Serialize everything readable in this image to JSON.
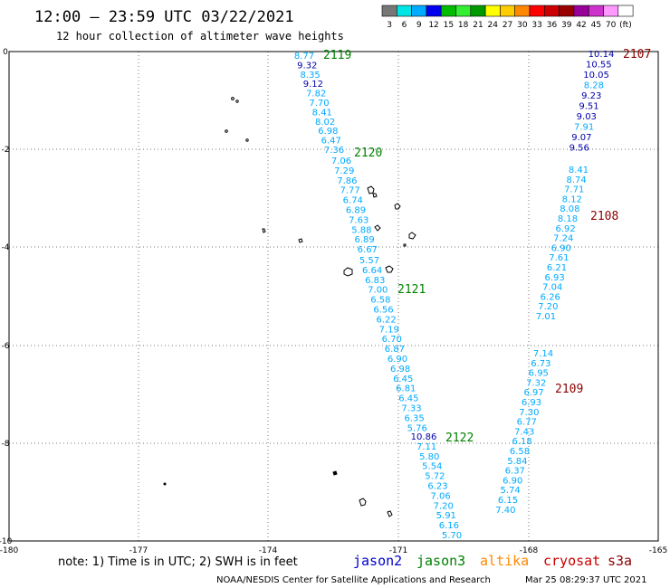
{
  "header": {
    "title": "12:00 – 23:59 UTC 03/22/2021",
    "subtitle": "12 hour collection of altimeter wave heights"
  },
  "colorbar": {
    "colors": [
      "#777777",
      "#00e6e6",
      "#00aaff",
      "#0000ee",
      "#00bb00",
      "#33ee33",
      "#009900",
      "#ffff00",
      "#ffcc00",
      "#ff8800",
      "#ff0000",
      "#cc0000",
      "#990000",
      "#990099",
      "#cc33cc",
      "#ff99ff",
      "#ffffff"
    ],
    "labels": [
      "3",
      "6",
      "9",
      "12",
      "15",
      "18",
      "21",
      "24",
      "27",
      "30",
      "33",
      "36",
      "39",
      "42",
      "45",
      "70",
      "(ft)"
    ]
  },
  "axes": {
    "x_ticks": [
      "-180",
      "-177",
      "-174",
      "-171",
      "-168",
      "-165"
    ],
    "y_ticks": [
      "0",
      "-2",
      "-4",
      "-6",
      "-8",
      "-10"
    ]
  },
  "islands": "small island outlines",
  "passes": [
    {
      "label": "2119",
      "color": "#008000",
      "values": [
        "8.77",
        "9.32",
        "8.35",
        "9.12",
        "7.82",
        "7.70",
        "8.41",
        "8.02",
        "6.98",
        "6.47",
        "7.36"
      ],
      "colors": [
        "#00aaff",
        "#0000aa",
        "#00aaff",
        "#0000aa",
        "#00aaff",
        "#00aaff",
        "#00aaff",
        "#00aaff",
        "#00aaff",
        "#00aaff",
        "#00aaff"
      ]
    },
    {
      "label": "2120",
      "color": "#008000",
      "values": [
        "7.06",
        "7.29",
        "7.86",
        "7.77",
        "6.74",
        "6.89",
        "7.63",
        "5.88",
        "6.89",
        "6.67"
      ],
      "colors": [
        "#00aaff",
        "#00aaff",
        "#00aaff",
        "#00aaff",
        "#00aaff",
        "#00aaff",
        "#00aaff",
        "#00aaff",
        "#00aaff",
        "#00aaff"
      ]
    },
    {
      "label": "2121",
      "color": "#008000",
      "values": [
        "5.57",
        "6.64",
        "6.83",
        "7.00",
        "6.58",
        "6.56",
        "6.22",
        "7.19",
        "6.70",
        "6.87",
        "6.90",
        "6.98",
        "6.45",
        "6.81",
        "6.45",
        "7.33",
        "6.35",
        "5.76"
      ],
      "colors": [
        "#00aaff",
        "#00aaff",
        "#00aaff",
        "#00aaff",
        "#00aaff",
        "#00aaff",
        "#00aaff",
        "#00aaff",
        "#00aaff",
        "#00aaff",
        "#00aaff",
        "#00aaff",
        "#00aaff",
        "#00aaff",
        "#00aaff",
        "#00aaff",
        "#00aaff",
        "#00aaff"
      ]
    },
    {
      "label": "2122",
      "color": "#008000",
      "values": [
        "10.86",
        "7.11",
        "5.80",
        "5.54",
        "5.72",
        "6.23",
        "7.06",
        "7.20",
        "5.91",
        "6.16",
        "5.70"
      ],
      "colors": [
        "#0000aa",
        "#00aaff",
        "#00aaff",
        "#00aaff",
        "#00aaff",
        "#00aaff",
        "#00aaff",
        "#00aaff",
        "#00aaff",
        "#00aaff",
        "#00aaff"
      ]
    },
    {
      "label": "2107",
      "color": "#8b0000",
      "values": [
        "10.14",
        "10.55",
        "10.05",
        "8.28",
        "9.23",
        "9.51",
        "9.03",
        "7.91",
        "9.07",
        "9.56"
      ],
      "colors": [
        "#0000aa",
        "#0000aa",
        "#0000aa",
        "#00aaff",
        "#0000aa",
        "#0000aa",
        "#0000aa",
        "#00aaff",
        "#0000aa",
        "#0000aa"
      ]
    },
    {
      "label": "2108",
      "color": "#8b0000",
      "values": [
        "8.41",
        "8.74",
        "7.71",
        "8.12",
        "8.08",
        "8.18",
        "6.92",
        "7.24",
        "6.90",
        "7.61",
        "6.21",
        "6.93",
        "7.04",
        "6.26",
        "7.20",
        "7.01"
      ],
      "colors": [
        "#00aaff",
        "#00aaff",
        "#00aaff",
        "#00aaff",
        "#00aaff",
        "#00aaff",
        "#00aaff",
        "#00aaff",
        "#00aaff",
        "#00aaff",
        "#00aaff",
        "#00aaff",
        "#00aaff",
        "#00aaff",
        "#00aaff",
        "#00aaff"
      ]
    },
    {
      "label": "2109",
      "color": "#8b0000",
      "values": [
        "7.14",
        "6.73",
        "6.95",
        "7.32",
        "6.97",
        "6.93",
        "7.30",
        "6.77",
        "7.43",
        "6.18",
        "6.58",
        "5.84",
        "6.37",
        "6.90",
        "5.74",
        "6.15",
        "7.40"
      ],
      "colors": [
        "#00aaff",
        "#00aaff",
        "#00aaff",
        "#00aaff",
        "#00aaff",
        "#00aaff",
        "#00aaff",
        "#00aaff",
        "#00aaff",
        "#00aaff",
        "#00aaff",
        "#00aaff",
        "#00aaff",
        "#00aaff",
        "#00aaff",
        "#00aaff",
        "#00aaff"
      ]
    }
  ],
  "note": "note:  1) Time is in UTC;  2) SWH is in feet",
  "satellites": [
    {
      "name": "jason2",
      "color": "#0000cc"
    },
    {
      "name": "jason3",
      "color": "#008000"
    },
    {
      "name": "altika",
      "color": "#ff8800"
    },
    {
      "name": "cryosat",
      "color": "#cc0000"
    },
    {
      "name": "s3a",
      "color": "#8b0000"
    }
  ],
  "footer": {
    "credit": "NOAA/NESDIS Center for Satellite Applications and Research",
    "timestamp": "Mar 25 08:29:37 UTC 2021"
  }
}
